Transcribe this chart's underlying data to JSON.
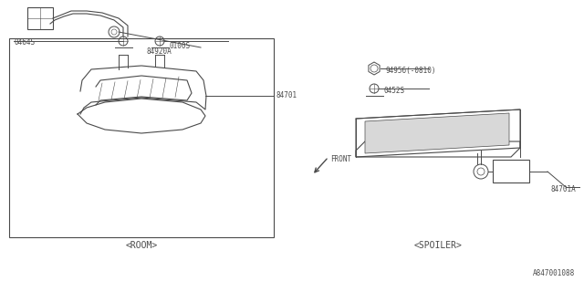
{
  "bg_color": "#ffffff",
  "line_color": "#4a4a4a",
  "text_color": "#4a4a4a",
  "part_id": "A847001088",
  "caption_left": "<ROOM>",
  "caption_right": "<SPOILER>",
  "front_label": "FRONT",
  "label_84701": "84701",
  "label_0464S": "0464S",
  "label_0100S": "0100S",
  "label_84920A": "84920A",
  "label_84701A": "84701A",
  "label_0452S": "0452S",
  "label_94956": "94956(-0810)"
}
